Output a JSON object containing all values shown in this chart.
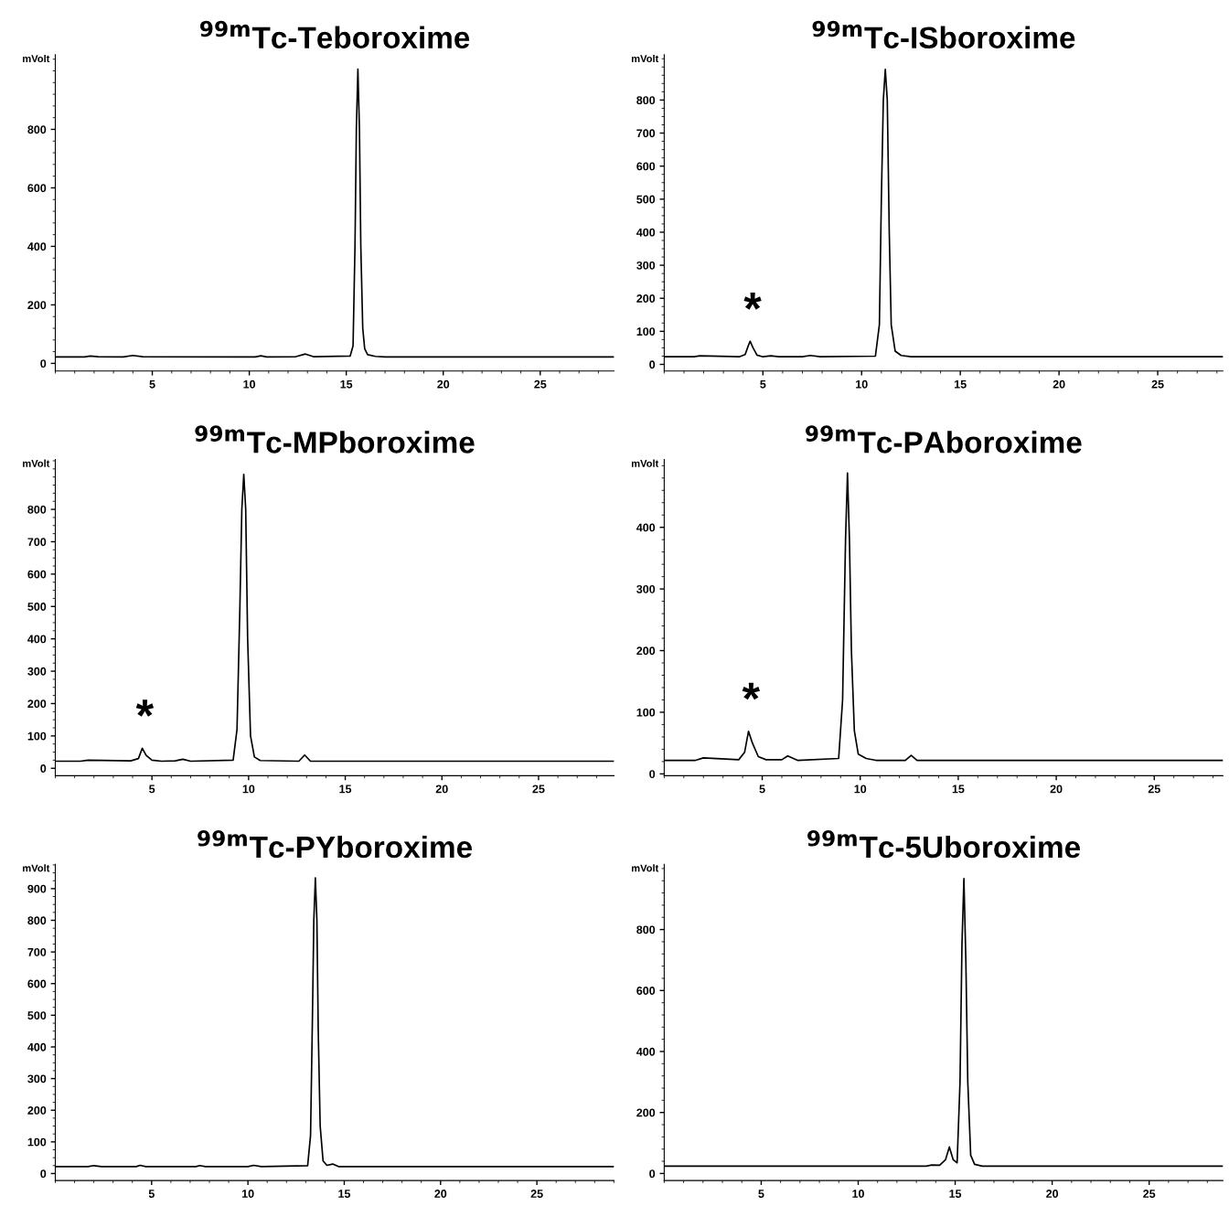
{
  "chart_data": [
    {
      "type": "line",
      "title": "$^{99m}$Tc-Teboroxime",
      "ylabel": "mVolt",
      "xlim": [
        0,
        28.8
      ],
      "ylim": [
        -26,
        1055
      ],
      "xticks": [
        5,
        10,
        15,
        20,
        25
      ],
      "yticks": [
        0,
        200,
        400,
        600,
        800
      ],
      "grid": false,
      "marker": "none",
      "line_style": "solid",
      "series": [
        {
          "color": "#000000",
          "x": [
            0,
            1.5,
            1.8,
            2.2,
            3.5,
            4.0,
            4.5,
            10.3,
            10.6,
            10.9,
            12.4,
            12.9,
            13.3,
            15.2,
            15.35,
            15.45,
            15.52,
            15.6,
            15.68,
            15.75,
            15.85,
            15.95,
            16.1,
            16.5,
            17,
            28.8
          ],
          "values": [
            22,
            22,
            25,
            23,
            22,
            27,
            23,
            22,
            26,
            22,
            23,
            32,
            23,
            25,
            60,
            400,
            800,
            1006,
            800,
            400,
            120,
            50,
            30,
            24,
            22,
            22
          ]
        }
      ]
    },
    {
      "type": "line",
      "title": "$^{99m}$Tc-ISboroxime",
      "ylabel": "mVolt",
      "xlim": [
        0,
        28.3
      ],
      "ylim": [
        -20,
        937
      ],
      "xticks": [
        5,
        10,
        15,
        20,
        25
      ],
      "yticks": [
        0,
        100,
        200,
        300,
        400,
        500,
        600,
        700,
        800
      ],
      "grid": false,
      "marker": "none",
      "line_style": "solid",
      "annotations": [
        {
          "text": "*",
          "x": 4.35,
          "y": 70
        }
      ],
      "series": [
        {
          "color": "#000000",
          "x": [
            0,
            1.5,
            1.8,
            3.8,
            4.1,
            4.25,
            4.35,
            4.5,
            4.7,
            5.0,
            5.4,
            5.8,
            7.0,
            7.4,
            7.9,
            10.7,
            10.9,
            11.0,
            11.1,
            11.2,
            11.3,
            11.4,
            11.5,
            11.7,
            12.0,
            12.5,
            28.3
          ],
          "values": [
            23,
            23,
            26,
            23,
            30,
            55,
            70,
            50,
            28,
            23,
            26,
            23,
            23,
            27,
            23,
            25,
            120,
            500,
            800,
            893,
            800,
            400,
            120,
            40,
            27,
            23,
            23
          ]
        }
      ]
    },
    {
      "type": "line",
      "title": "$^{99m}$Tc-MPboroxime",
      "ylabel": "mVolt",
      "xlim": [
        0,
        28.9
      ],
      "ylim": [
        -23,
        954
      ],
      "xticks": [
        5,
        10,
        15,
        20,
        25
      ],
      "yticks": [
        0,
        100,
        200,
        300,
        400,
        500,
        600,
        700,
        800
      ],
      "grid": false,
      "marker": "none",
      "line_style": "solid",
      "annotations": [
        {
          "text": "*",
          "x": 4.5,
          "y": 62
        }
      ],
      "series": [
        {
          "color": "#000000",
          "x": [
            0,
            1.3,
            1.7,
            3.9,
            4.3,
            4.5,
            4.7,
            5.0,
            5.5,
            6.2,
            6.6,
            7.0,
            9.2,
            9.4,
            9.55,
            9.65,
            9.75,
            9.85,
            9.95,
            10.1,
            10.3,
            10.6,
            12.6,
            12.9,
            13.2,
            28.9
          ],
          "values": [
            22,
            22,
            25,
            23,
            30,
            62,
            40,
            25,
            22,
            23,
            28,
            22,
            25,
            120,
            500,
            800,
            908,
            800,
            400,
            100,
            35,
            24,
            22,
            41,
            22,
            22
          ]
        }
      ]
    },
    {
      "type": "line",
      "title": "$^{99m}$Tc-PAboroxime",
      "ylabel": "mVolt",
      "xlim": [
        0,
        28.5
      ],
      "ylim": [
        -3,
        510
      ],
      "xticks": [
        5,
        10,
        15,
        20,
        25
      ],
      "yticks": [
        0,
        100,
        200,
        300,
        400
      ],
      "grid": false,
      "marker": "none",
      "line_style": "solid",
      "annotations": [
        {
          "text": "*",
          "x": 4.3,
          "y": 69
        }
      ],
      "series": [
        {
          "color": "#000000",
          "x": [
            0,
            1.6,
            2.0,
            3.8,
            4.1,
            4.3,
            4.5,
            4.8,
            5.2,
            6.0,
            6.3,
            6.8,
            8.9,
            9.1,
            9.25,
            9.35,
            9.45,
            9.55,
            9.7,
            9.9,
            10.3,
            10.8,
            12.3,
            12.6,
            12.9,
            28.5
          ],
          "values": [
            22,
            22,
            26,
            23,
            35,
            69,
            50,
            28,
            23,
            23,
            29,
            22,
            25,
            120,
            380,
            488,
            380,
            200,
            70,
            32,
            25,
            22,
            22,
            30,
            22,
            22
          ]
        }
      ]
    },
    {
      "type": "line",
      "title": "$^{99m}$Tc-PYboroxime",
      "ylabel": "mVolt",
      "xlim": [
        0,
        29
      ],
      "ylim": [
        -22,
        977
      ],
      "xticks": [
        5,
        10,
        15,
        20,
        25
      ],
      "yticks": [
        0,
        100,
        200,
        300,
        400,
        500,
        600,
        700,
        800,
        900
      ],
      "grid": false,
      "marker": "none",
      "line_style": "solid",
      "series": [
        {
          "color": "#000000",
          "x": [
            0,
            1.7,
            2.0,
            2.4,
            4.2,
            4.4,
            4.7,
            7.3,
            7.5,
            7.8,
            10.0,
            10.3,
            10.7,
            13.1,
            13.25,
            13.35,
            13.42,
            13.5,
            13.58,
            13.65,
            13.75,
            13.9,
            14.1,
            14.4,
            14.7,
            28.98
          ],
          "values": [
            22,
            22,
            25,
            22,
            22,
            26,
            22,
            22,
            25,
            22,
            22,
            26,
            22,
            25,
            120,
            500,
            800,
            934,
            800,
            450,
            150,
            40,
            26,
            30,
            22,
            22
          ]
        }
      ]
    },
    {
      "type": "line",
      "title": "$^{99m}$Tc-5Uboroxime",
      "ylabel": "mVolt",
      "xlim": [
        0,
        28.8
      ],
      "ylim": [
        -23,
        1014
      ],
      "xticks": [
        5,
        10,
        15,
        20,
        25
      ],
      "yticks": [
        0,
        200,
        400,
        600,
        800
      ],
      "grid": false,
      "marker": "none",
      "line_style": "solid",
      "series": [
        {
          "color": "#000000",
          "x": [
            0,
            13.5,
            13.8,
            14.2,
            14.5,
            14.7,
            14.9,
            15.1,
            15.25,
            15.35,
            15.45,
            15.55,
            15.65,
            15.8,
            16.0,
            16.4,
            28.8
          ],
          "values": [
            24,
            24,
            28,
            27,
            45,
            87,
            45,
            35,
            300,
            750,
            967,
            700,
            300,
            60,
            30,
            24,
            24
          ]
        }
      ]
    }
  ]
}
